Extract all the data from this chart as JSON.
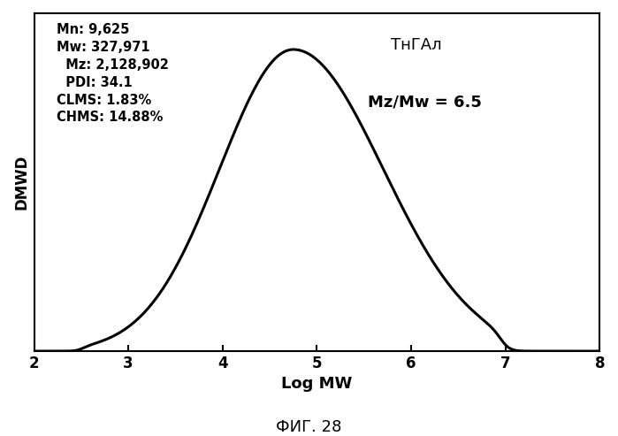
{
  "title": "ФИГ. 28",
  "xlabel": "Log MW",
  "ylabel": "DMWD",
  "xlim": [
    2,
    8
  ],
  "ylim": [
    0,
    1.12
  ],
  "xticks": [
    2,
    3,
    4,
    5,
    6,
    7,
    8
  ],
  "curve_peak_x": 4.75,
  "curve_peak_y": 1.0,
  "curve_start_x": 2.5,
  "curve_end_x": 6.97,
  "annotation_label1": "ТнГАл",
  "annotation_label2": "Mz/Mw = 6.5",
  "stats_lines": [
    "Mn: 9,625",
    "Mw: 327,971",
    "  Mz: 2,128,902",
    "  PDI: 34.1",
    "CLMS: 1.83%",
    "CHMS: 14.88%"
  ],
  "line_color": "#000000",
  "bg_color": "#ffffff",
  "text_color": "#000000",
  "line_width": 2.2
}
